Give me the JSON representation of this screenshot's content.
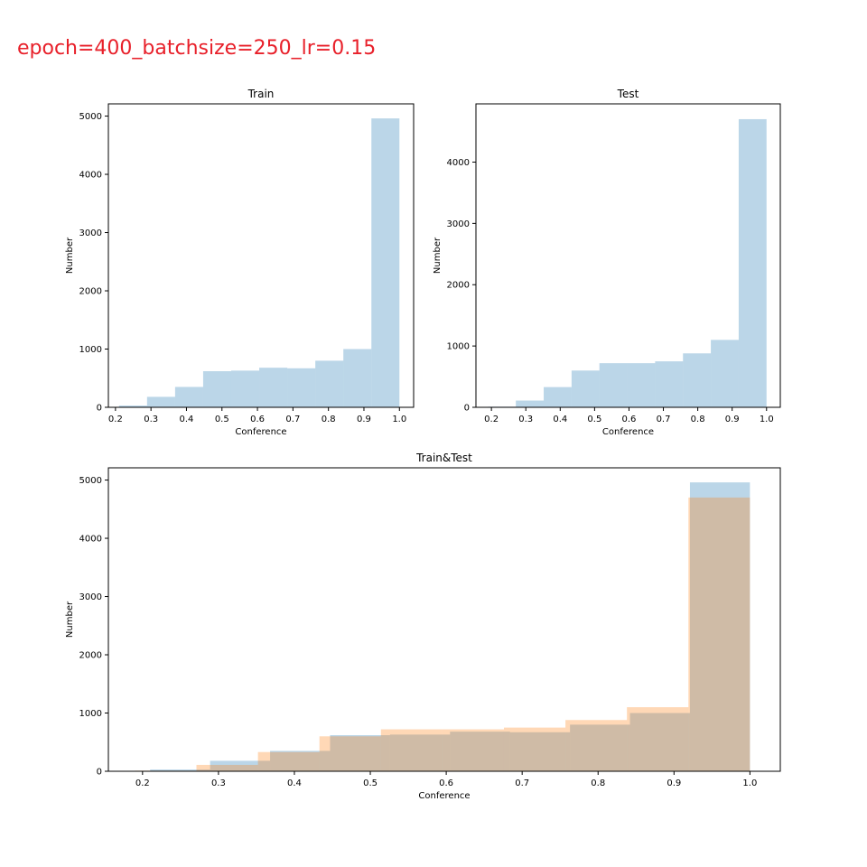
{
  "suptitle": "epoch=400_batchsize=250_lr=0.15",
  "colors": {
    "train": "#1f77b4",
    "test": "#ff7f0e",
    "title": "#e8202a"
  },
  "chart_data": [
    {
      "type": "bar",
      "title": "Train",
      "xlabel": "Conference",
      "ylabel": "Number",
      "xlim": [
        0.18,
        1.04
      ],
      "ylim": [
        0,
        5210
      ],
      "xticks": [
        0.2,
        0.3,
        0.4,
        0.5,
        0.6,
        0.7,
        0.8,
        0.9,
        1.0
      ],
      "xtick_labels": [
        "0.2",
        "0.3",
        "0.4",
        "0.5",
        "0.6",
        "0.7",
        "0.8",
        "0.9",
        "1.0"
      ],
      "yticks": [
        0,
        1000,
        2000,
        3000,
        4000,
        5000
      ],
      "ytick_labels": [
        "0",
        "1000",
        "2000",
        "3000",
        "4000",
        "5000"
      ],
      "series": [
        {
          "color": "#1f77b4",
          "alpha": 0.3,
          "bin_edges": [
            0.21,
            0.289,
            0.368,
            0.447,
            0.526,
            0.605,
            0.684,
            0.763,
            0.842,
            0.921,
            1.0
          ],
          "values": [
            30,
            180,
            350,
            620,
            630,
            680,
            670,
            800,
            1000,
            4960
          ]
        }
      ]
    },
    {
      "type": "bar",
      "title": "Test",
      "xlabel": "Conference",
      "ylabel": "Number",
      "xlim": [
        0.155,
        1.04
      ],
      "ylim": [
        0,
        4950
      ],
      "xticks": [
        0.2,
        0.3,
        0.4,
        0.5,
        0.6,
        0.7,
        0.8,
        0.9,
        1.0
      ],
      "xtick_labels": [
        "0.2",
        "0.3",
        "0.4",
        "0.5",
        "0.6",
        "0.7",
        "0.8",
        "0.9",
        "1.0"
      ],
      "yticks": [
        0,
        1000,
        2000,
        3000,
        4000
      ],
      "ytick_labels": [
        "0",
        "1000",
        "2000",
        "3000",
        "4000"
      ],
      "series": [
        {
          "color": "#1f77b4",
          "alpha": 0.3,
          "bin_edges": [
            0.19,
            0.271,
            0.352,
            0.433,
            0.514,
            0.595,
            0.676,
            0.757,
            0.838,
            0.919,
            1.0
          ],
          "values": [
            10,
            110,
            330,
            600,
            720,
            720,
            750,
            880,
            1100,
            4700
          ]
        }
      ]
    },
    {
      "type": "bar",
      "title": "Train&Test",
      "xlabel": "Conference",
      "ylabel": "Number",
      "xlim": [
        0.155,
        1.04
      ],
      "ylim": [
        0,
        5210
      ],
      "xticks": [
        0.2,
        0.3,
        0.4,
        0.5,
        0.6,
        0.7,
        0.8,
        0.9,
        1.0
      ],
      "xtick_labels": [
        "0.2",
        "0.3",
        "0.4",
        "0.5",
        "0.6",
        "0.7",
        "0.8",
        "0.9",
        "1.0"
      ],
      "yticks": [
        0,
        1000,
        2000,
        3000,
        4000,
        5000
      ],
      "ytick_labels": [
        "0",
        "1000",
        "2000",
        "3000",
        "4000",
        "5000"
      ],
      "series": [
        {
          "color": "#1f77b4",
          "alpha": 0.3,
          "bin_edges": [
            0.21,
            0.289,
            0.368,
            0.447,
            0.526,
            0.605,
            0.684,
            0.763,
            0.842,
            0.921,
            1.0
          ],
          "values": [
            30,
            180,
            350,
            620,
            630,
            680,
            670,
            800,
            1000,
            4960
          ]
        },
        {
          "color": "#ff7f0e",
          "alpha": 0.3,
          "bin_edges": [
            0.19,
            0.271,
            0.352,
            0.433,
            0.514,
            0.595,
            0.676,
            0.757,
            0.838,
            0.919,
            1.0
          ],
          "values": [
            10,
            110,
            330,
            600,
            720,
            720,
            750,
            880,
            1100,
            4700
          ]
        }
      ]
    }
  ]
}
